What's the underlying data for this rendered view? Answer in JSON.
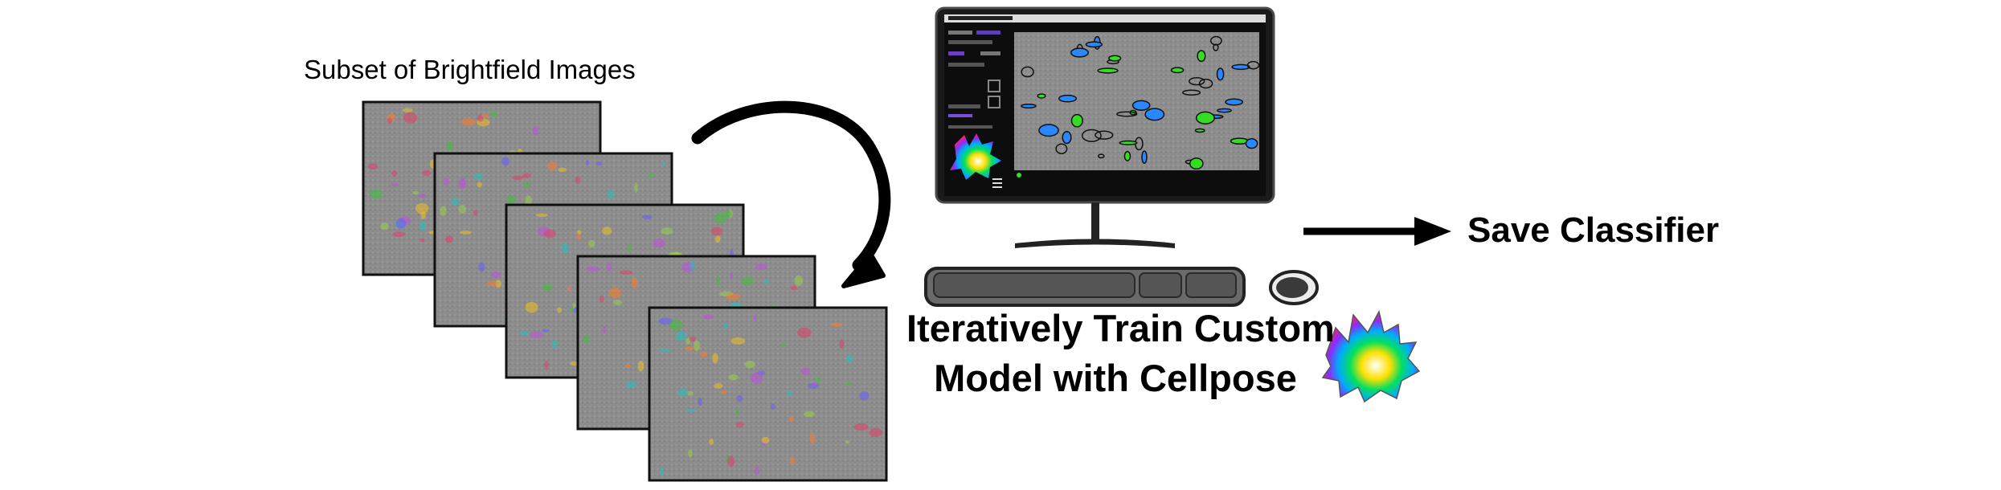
{
  "labels": {
    "subset_title": "Subset of Brightfield Images",
    "train_caption_line1": "Iteratively Train Custom",
    "train_caption_line2": "Model with Cellpose",
    "save_label": "Save Classifier"
  },
  "diagram": {
    "image_stack_count": 5,
    "colors": {
      "image_bg": "#8d8d8d",
      "frame": "#111111",
      "monitor_bezel": "#1a1a1a",
      "gui_panel": "#0d0d0d",
      "gui_canvas": "#8f8f8f",
      "mask_outline_green": "#33dd22",
      "mask_blue": "#2a88ff",
      "arrow": "#000000",
      "keyboard": "#555555",
      "keyboard_outline": "#222222"
    },
    "icons": [
      "brightfield-image",
      "cycle-arrow",
      "computer-monitor",
      "keyboard",
      "mouse",
      "cellpose-logo",
      "right-arrow"
    ]
  }
}
